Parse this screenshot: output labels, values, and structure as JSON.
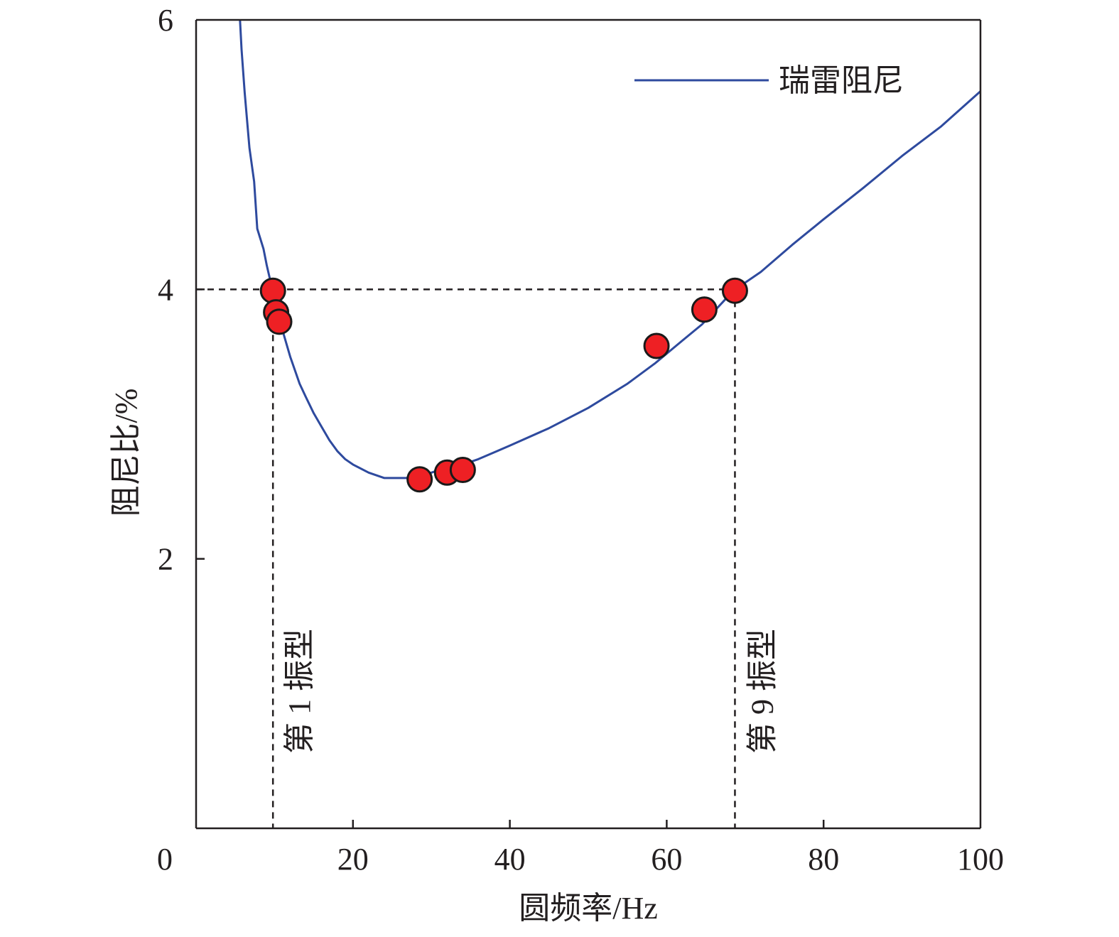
{
  "chart_data": {
    "type": "line",
    "xlabel": "圆频率/Hz",
    "ylabel": "阻尼比/%",
    "xlim": [
      0,
      100
    ],
    "ylim": [
      0,
      6
    ],
    "x_ticks": [
      0,
      20,
      40,
      60,
      80,
      100
    ],
    "y_ticks": [
      2,
      4,
      6
    ],
    "x_tick_labels": [
      "0",
      "20",
      "40",
      "60",
      "80",
      "100"
    ],
    "y_tick_labels": [
      "2",
      "4",
      "6"
    ],
    "grid": false,
    "legend_position": "top-right",
    "series": [
      {
        "name": "瑞雷阻尼",
        "color": "#2e4a9e",
        "x": [
          5.6,
          5.8,
          6.2,
          6.8,
          7.4,
          7.8,
          8.6,
          9.0,
          9.4,
          9.8,
          10.4,
          11.0,
          12.0,
          13.2,
          14.0,
          15.0,
          16.0,
          17.0,
          18.0,
          19.0,
          20.0,
          22.0,
          24.0,
          26.0,
          28.0,
          30.0,
          32.0,
          34.0,
          36.0,
          40.0,
          45.0,
          50.0,
          55.0,
          58.5,
          62.0,
          64.5,
          68.5,
          72.0,
          76.0,
          80.0,
          85.0,
          90.0,
          95.0,
          100.0
        ],
        "y": [
          6.0,
          5.78,
          5.46,
          5.05,
          4.8,
          4.45,
          4.3,
          4.18,
          4.08,
          3.99,
          3.84,
          3.7,
          3.5,
          3.3,
          3.2,
          3.08,
          2.98,
          2.88,
          2.8,
          2.74,
          2.7,
          2.64,
          2.6,
          2.6,
          2.6,
          2.64,
          2.68,
          2.7,
          2.74,
          2.84,
          2.97,
          3.12,
          3.3,
          3.45,
          3.62,
          3.74,
          3.99,
          4.13,
          4.33,
          4.52,
          4.75,
          4.99,
          5.21,
          5.47
        ]
      }
    ],
    "points": {
      "color": "#ee2024",
      "x": [
        9.8,
        10.2,
        10.6,
        28.5,
        32.0,
        34.0,
        58.7,
        64.8,
        68.7
      ],
      "y": [
        3.99,
        3.83,
        3.76,
        2.59,
        2.64,
        2.66,
        3.58,
        3.85,
        3.99
      ]
    },
    "reference_lines": {
      "horizontal_y": 4,
      "vertical_x": [
        9.8,
        68.7
      ]
    },
    "annotations": [
      {
        "text": "第 1 振型",
        "x": 14.5
      },
      {
        "text": "第 9 振型",
        "x": 73.5
      }
    ]
  }
}
